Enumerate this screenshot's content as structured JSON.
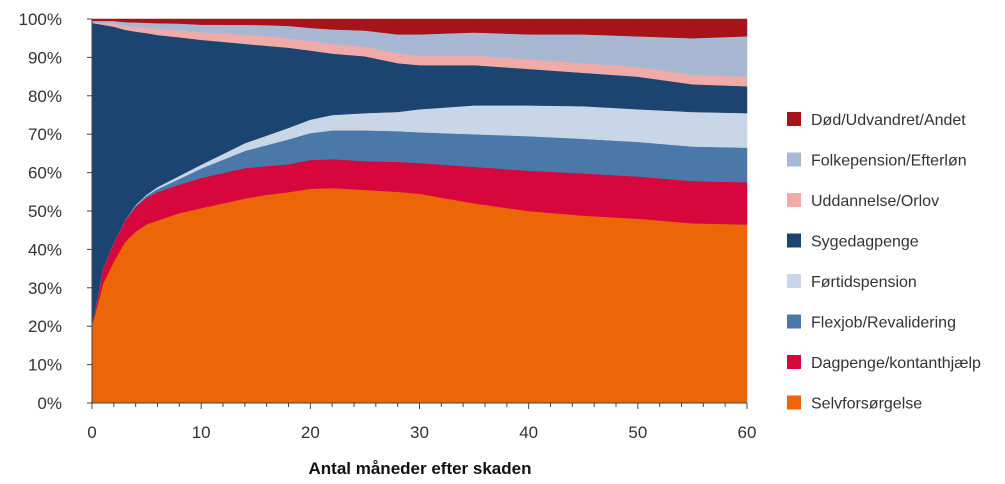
{
  "chart_data": {
    "type": "area",
    "stacked": true,
    "normalized": true,
    "xlabel": "Antal måneder efter skaden",
    "ylabel": "",
    "title": "",
    "xlim": [
      0,
      60
    ],
    "ylim": [
      0,
      100
    ],
    "x_ticks": [
      0,
      10,
      20,
      30,
      40,
      50,
      60
    ],
    "y_ticks": [
      0,
      10,
      20,
      30,
      40,
      50,
      60,
      70,
      80,
      90,
      100
    ],
    "y_tick_labels": [
      "0%",
      "10%",
      "20%",
      "30%",
      "40%",
      "50%",
      "60%",
      "70%",
      "80%",
      "90%",
      "100%"
    ],
    "legend_position": "right",
    "grid": false,
    "x": [
      0,
      1,
      2,
      3,
      4,
      5,
      6,
      8,
      10,
      12,
      14,
      16,
      18,
      20,
      22,
      25,
      28,
      30,
      35,
      40,
      45,
      50,
      55,
      60
    ],
    "series": [
      {
        "name": "Selvforsørgelse",
        "color": "#ec6608",
        "values": [
          20,
          31,
          37,
          42,
          45,
          47,
          48,
          50,
          51.5,
          52.5,
          53.5,
          54.5,
          55.2,
          55.8,
          56,
          55.5,
          55,
          54.5,
          52,
          50,
          48.8,
          48,
          46.8,
          46.5
        ]
      },
      {
        "name": "Dagpenge/kontanthjælp",
        "color": "#d7063c",
        "values": [
          0,
          4,
          5,
          5.5,
          6.5,
          7,
          7.5,
          7.5,
          8,
          8,
          8,
          7.5,
          7.3,
          7.5,
          7.5,
          7.5,
          7.8,
          8,
          9.5,
          10.5,
          11,
          11,
          11,
          11
        ]
      },
      {
        "name": "Flexjob/Revalidering",
        "color": "#4a78a8",
        "values": [
          0,
          0,
          0,
          0.2,
          0.3,
          0.5,
          0.8,
          1.5,
          2.5,
          3.5,
          4.5,
          5.5,
          6.5,
          7,
          7.5,
          8,
          8,
          8,
          8.5,
          9,
          9,
          9,
          9,
          9
        ]
      },
      {
        "name": "Førtidspension",
        "color": "#c9d6e8",
        "values": [
          0,
          0,
          0,
          0,
          0.2,
          0.3,
          0.5,
          0.8,
          1,
          1.5,
          2,
          2.5,
          3,
          3.5,
          4,
          4.5,
          5,
          6,
          7.5,
          8,
          8.5,
          8.5,
          9,
          9
        ]
      },
      {
        "name": "Sygedagpenge",
        "color": "#1c4471",
        "values": [
          79,
          63.5,
          56.5,
          50,
          45.5,
          42.5,
          40,
          36.5,
          33,
          29.5,
          26,
          23.5,
          21,
          18,
          16,
          14.8,
          12.7,
          11.5,
          10.5,
          9.5,
          8.7,
          8.5,
          7.2,
          7
        ]
      },
      {
        "name": "Uddannelse/Orlov",
        "color": "#f0aaa8",
        "values": [
          0.2,
          0.5,
          0.8,
          1,
          1.2,
          1.4,
          1.6,
          1.8,
          2,
          2.2,
          2.4,
          2.5,
          2.5,
          2.5,
          2.5,
          2.5,
          2.5,
          2.5,
          2.5,
          2.5,
          2.5,
          2.5,
          2.5,
          2.5
        ]
      },
      {
        "name": "Folkepension/Efterløn",
        "color": "#a8b8d2",
        "values": [
          0.3,
          0.5,
          0.7,
          1,
          1.2,
          1.3,
          1.5,
          1.8,
          2,
          2.3,
          2.6,
          2.9,
          3.2,
          3.4,
          3.8,
          4.2,
          5,
          5.5,
          6,
          6.5,
          7.5,
          8,
          9.5,
          10.5
        ]
      },
      {
        "name": "Død/Udvandret/Andet",
        "color": "#a61419",
        "values": [
          0.5,
          0.5,
          0.5,
          0.8,
          0.9,
          1,
          1.1,
          1.2,
          1.5,
          1.5,
          1.5,
          1.6,
          1.8,
          2.3,
          2.7,
          3,
          4,
          4,
          3.5,
          4,
          4,
          4.5,
          5,
          4.5
        ]
      }
    ],
    "legend_order": [
      "Død/Udvandret/Andet",
      "Folkepension/Efterløn",
      "Uddannelse/Orlov",
      "Sygedagpenge",
      "Førtidspension",
      "Flexjob/Revalidering",
      "Dagpenge/kontanthjælp",
      "Selvforsørgelse"
    ]
  }
}
